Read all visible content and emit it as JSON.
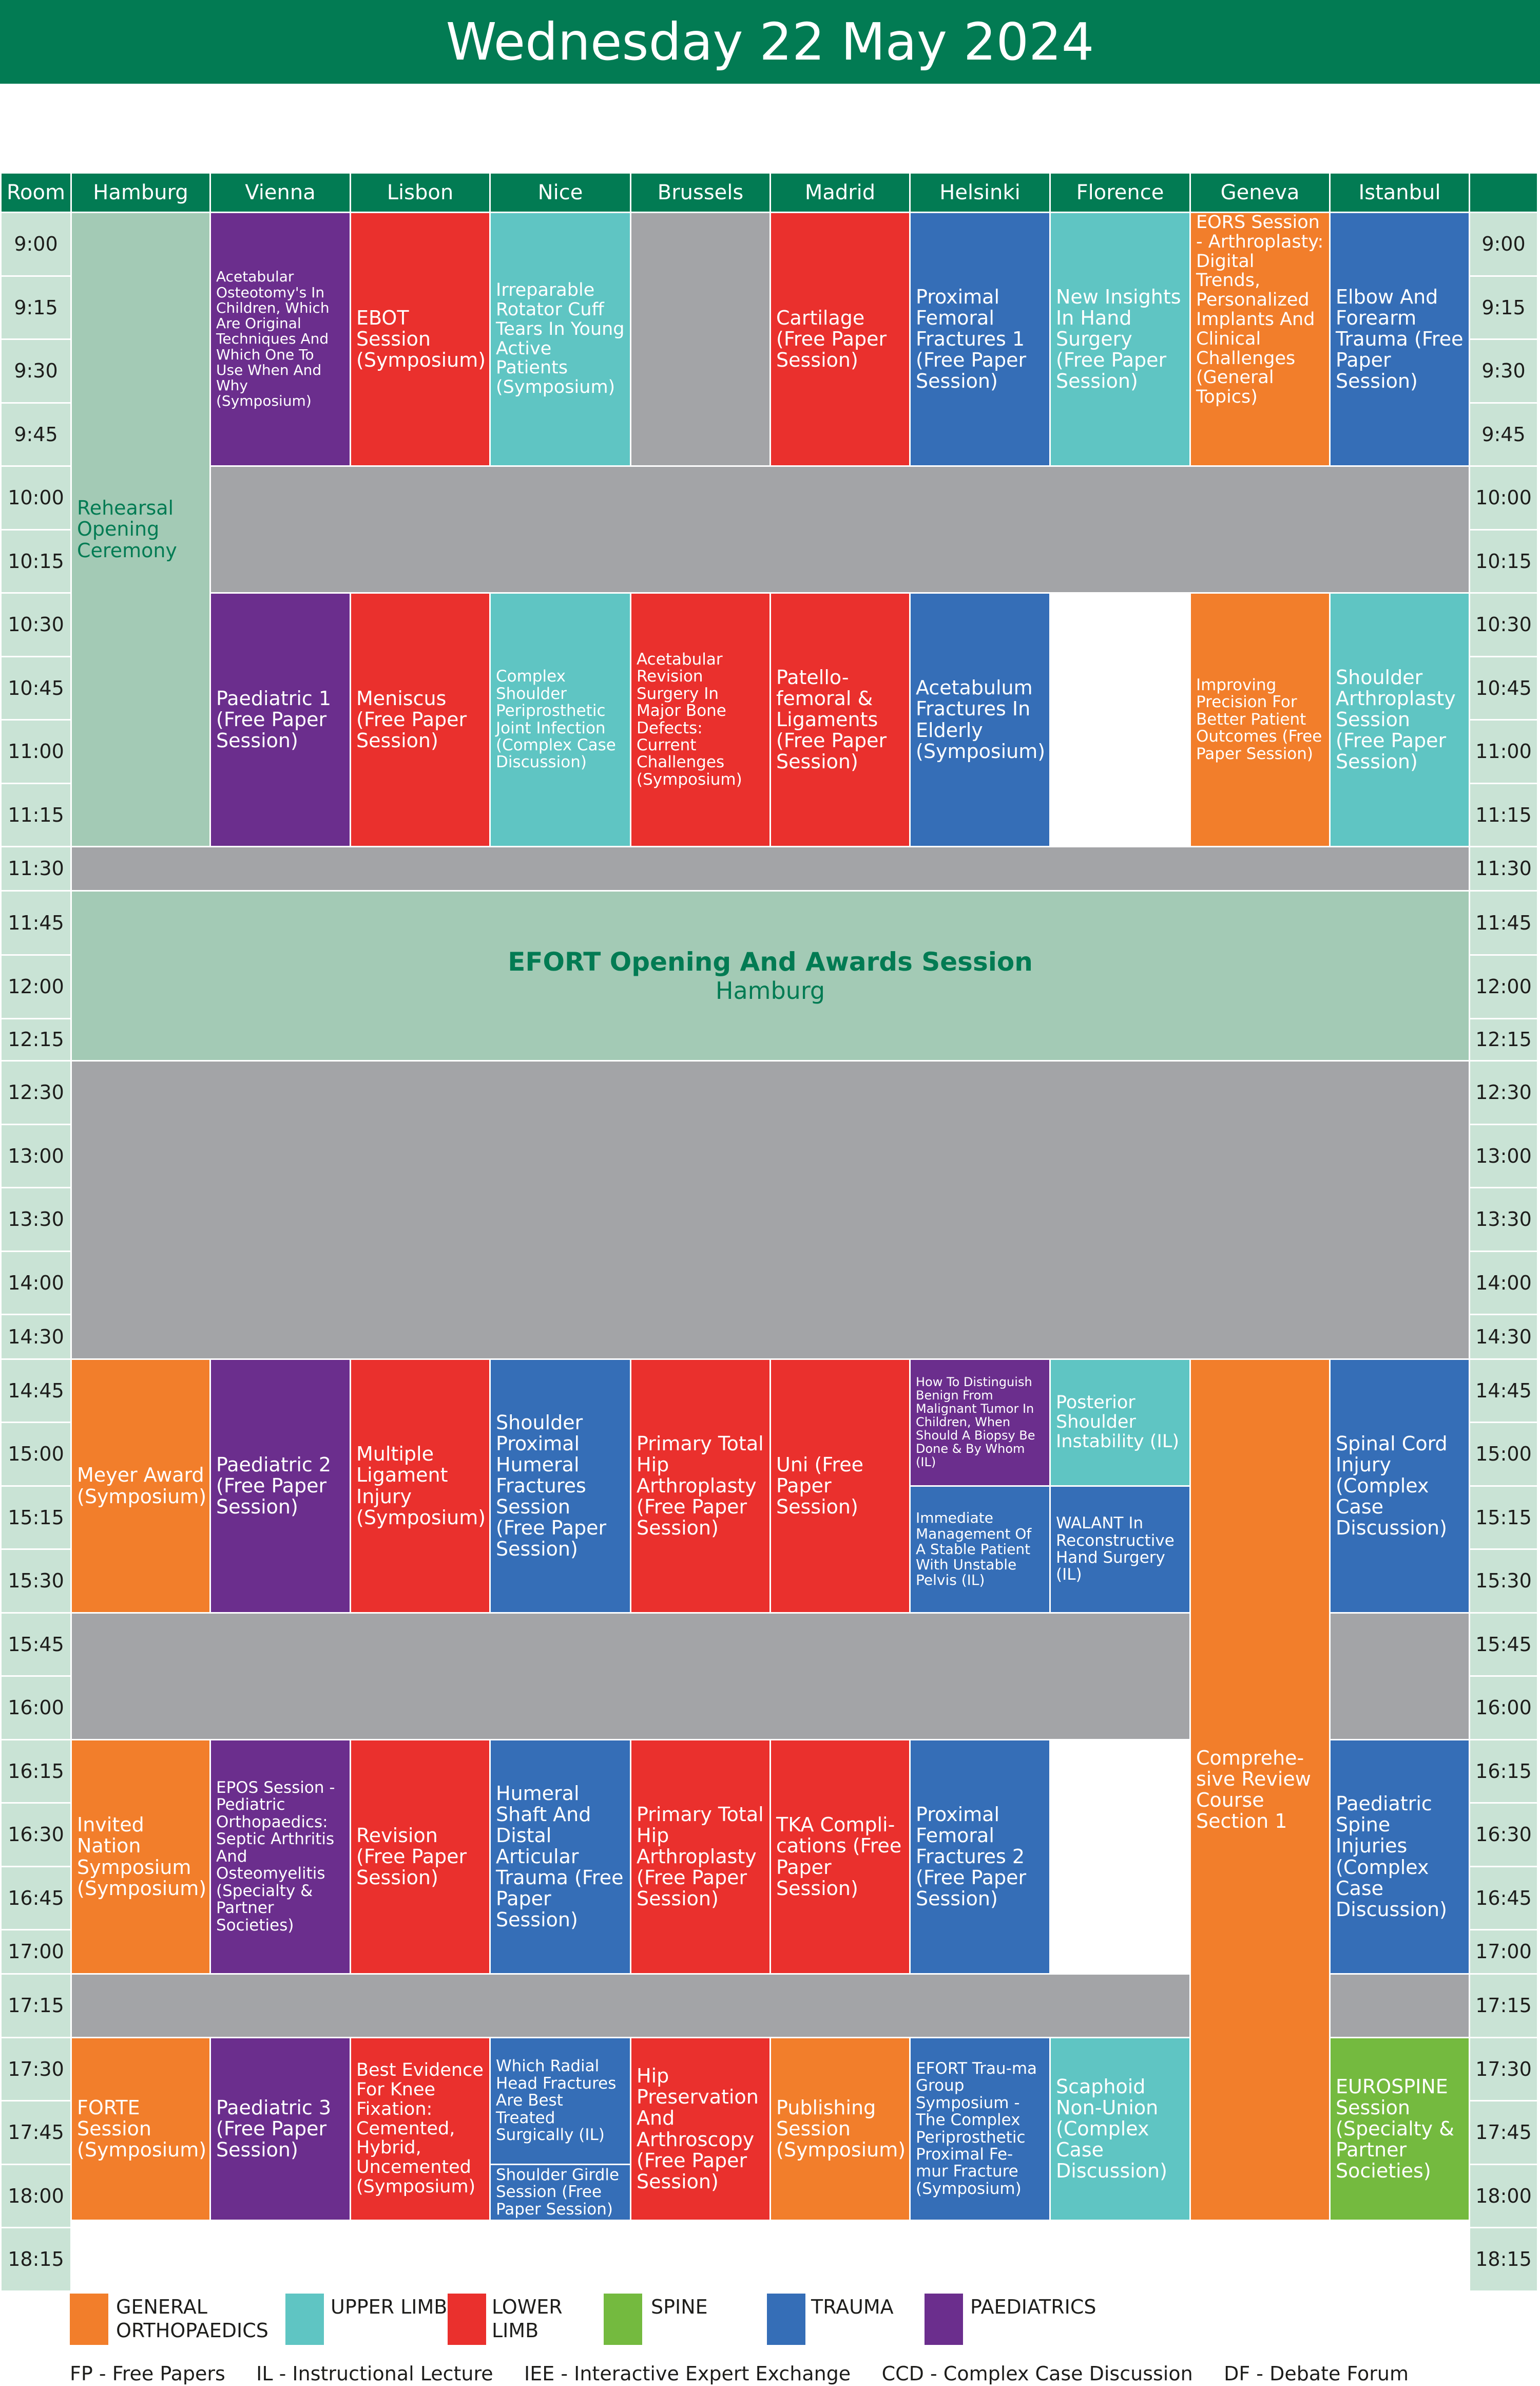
{
  "title": "Wednesday 22 May 2024",
  "room_label": "Room",
  "rooms": [
    "Hamburg",
    "Vienna",
    "Lisbon",
    "Nice",
    "Brussels",
    "Madrid",
    "Helsinki",
    "Florence",
    "Geneva",
    "Istanbul"
  ],
  "times": [
    "9:00",
    "9:15",
    "9:30",
    "9:45",
    "10:00",
    "10:15",
    "10:30",
    "10:45",
    "11:00",
    "11:15",
    "11:30",
    "11:45",
    "12:00",
    "12:15",
    "12:30",
    "13:00",
    "13:30",
    "14:00",
    "14:30",
    "14:45",
    "15:00",
    "15:15",
    "15:30",
    "15:45",
    "16:00",
    "16:15",
    "16:30",
    "16:45",
    "17:00",
    "17:15",
    "17:30",
    "17:45",
    "18:00",
    "18:15"
  ],
  "colors": {
    "header": "#027b53",
    "time_bg": "#c9e3d5",
    "break_gray": "#a3a4a7",
    "hamburg_mint": "#a3cab5",
    "general_orthopaedics": "#f27e2b",
    "upper_limb": "#5fc5c3",
    "lower_limb": "#ea302d",
    "spine": "#74ba3f",
    "trauma": "#356eb7",
    "paediatrics": "#6b2e8d"
  },
  "sessions": {
    "rehearsal": "Rehearsal Opening Ceremony",
    "acetabular_osteotomy": "Acetabular Osteotomy's In Children, Which Are Original Techniques And Which One To Use When And Why (Symposium)",
    "ebot": "EBOT Session (Symposium)",
    "irreparable_rotator": "Irreparable Rotator Cuff Tears In Young Active Patients (Symposium)",
    "cartilage": "Cartilage (Free Paper Session)",
    "proximal_femoral_1": "Proximal Femoral Fractures 1 (Free Paper Session)",
    "new_insights_hand": "New Insights In Hand Surgery (Free Paper Session)",
    "eors": "EORS Session - Arthroplasty: Digital Trends, Personalized Implants And Clinical Challenges (General Topics)",
    "elbow_forearm": "Elbow And Forearm Trauma (Free Paper Session)",
    "paediatric_1": "Paediatric 1 (Free Paper Session)",
    "meniscus": "Meniscus (Free Paper Session)",
    "complex_shoulder_pji": "Complex Shoulder Periprosthetic Joint Infection (Complex Case Discussion)",
    "acetabular_revision": "Acetabular Revision Surgery In Major Bone Defects: Current Challenges (Symposium)",
    "patellofemoral": "Patello-femoral & Ligaments (Free Paper Session)",
    "acetabulum_elderly": "Acetabulum Fractures In Elderly (Symposium)",
    "improving_precision": "Improving Precision For Better Patient Outcomes (Free Paper Session)",
    "shoulder_arthroplasty": "Shoulder Arthroplasty Session (Free Paper Session)",
    "opening_title": "EFORT Opening And Awards Session",
    "opening_room": "Hamburg",
    "meyer": "Meyer Award (Symposium)",
    "paediatric_2": "Paediatric 2 (Free Paper Session)",
    "multiple_ligament": "Multiple Ligament Injury (Symposium)",
    "shoulder_proximal_humeral": "Shoulder Proximal Humeral Fractures Session (Free Paper Session)",
    "primary_tha_1": "Primary Total Hip Arthroplasty (Free Paper Session)",
    "uni": "Uni (Free Paper Session)",
    "malignant_tumor": "How To Distinguish Benign From Malignant Tumor In Children, When Should A Biopsy Be Done & By Whom (IL)",
    "posterior_shoulder": "Posterior Shoulder Instability (IL)",
    "unstable_pelvis": "Immediate Management Of A Stable Patient With Unstable Pelvis (IL)",
    "walant": "WALANT In Reconstructive Hand Surgery (IL)",
    "comprehensive_review": "Comprehe-sive Review Course Section 1",
    "spinal_cord": "Spinal Cord Injury (Complex Case Discussion)",
    "invited_nation": "Invited Nation Symposium (Symposium)",
    "epos": "EPOS Session - Pediatric Orthopaedics: Septic Arthritis And Osteomyelitis (Specialty & Partner Societies)",
    "revision": "Revision (Free Paper Session)",
    "humeral_shaft": "Humeral Shaft And Distal Articular Trauma (Free Paper Session)",
    "primary_tha_2": "Primary Total Hip Arthroplasty (Free Paper Session)",
    "tka_complications": "TKA Compli-cations (Free Paper Session)",
    "proximal_femoral_2": "Proximal Femoral Fractures 2 (Free Paper Session)",
    "paediatric_spine": "Paediatric Spine Injuries (Complex Case Discussion)",
    "forte": "FORTE Session (Symposium)",
    "paediatric_3": "Paediatric 3 (Free Paper Session)",
    "best_evidence_knee": "Best Evidence For Knee Fixation: Cemented, Hybrid, Uncemented (Symposium)",
    "radial_head": "Which Radial Head Fractures Are Best Treated Surgically (IL)",
    "shoulder_girdle": "Shoulder Girdle Session (Free Paper Session)",
    "hip_preservation": "Hip Preservation And Arthroscopy (Free Paper Session)",
    "publishing": "Publishing Session (Symposium)",
    "efort_trauma_group": "EFORT Trau-ma Group Symposium - The Complex Periprosthetic Proximal Fe-mur Fracture (Symposium)",
    "scaphoid": "Scaphoid Non-Union (Complex Case Discussion)",
    "eurospine": "EUROSPINE Session (Specialty & Partner Societies)"
  },
  "legend": [
    {
      "label": "GENERAL ORTHOPAEDICS",
      "color": "#f27e2b"
    },
    {
      "label": "UPPER LIMB",
      "color": "#5fc5c3"
    },
    {
      "label": "LOWER LIMB",
      "color": "#ea302d"
    },
    {
      "label": "SPINE",
      "color": "#74ba3f"
    },
    {
      "label": "TRAUMA",
      "color": "#356eb7"
    },
    {
      "label": "PAEDIATRICS",
      "color": "#6b2e8d"
    }
  ],
  "abbreviations": "FP - Free Papers     IL - Instructional Lecture     IEE - Interactive Expert Exchange     CCD - Complex Case Discussion     DF - Debate Forum"
}
